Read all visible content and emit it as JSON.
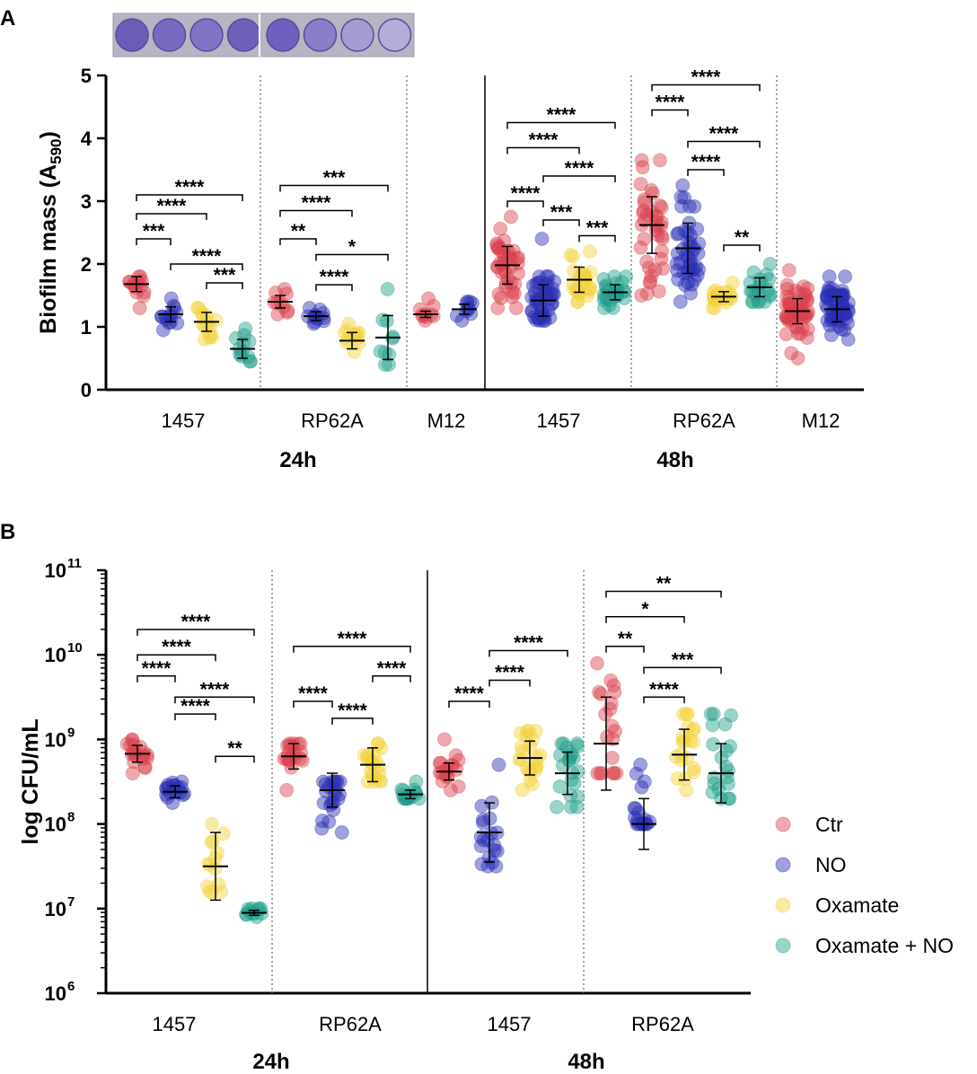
{
  "colors": {
    "Ctr": "#d9414e",
    "NO": "#2a2fb4",
    "Oxamate": "#f2d23a",
    "OxNO": "#1f9e8a",
    "well": "#6f5fbf"
  },
  "panel_a": {
    "letter": "A",
    "wells": 8
  },
  "panel_b": {
    "letter": "B"
  },
  "legend": [
    {
      "key": "Ctr",
      "label": "Ctr"
    },
    {
      "key": "NO",
      "label": "NO"
    },
    {
      "key": "Oxamate",
      "label": "Oxamate"
    },
    {
      "key": "OxNO",
      "label": "Oxamate + NO"
    }
  ],
  "chart_data": [
    {
      "id": "A",
      "type": "scatter",
      "title": "",
      "ylabel": "Biofilm mass (A590)",
      "ylabel_main": "Biofilm mass (A",
      "ylabel_sub": "590",
      "ylabel_end": ")",
      "ylim": [
        0,
        5
      ],
      "yticks": [
        "0",
        "1",
        "2",
        "3",
        "4",
        "5"
      ],
      "time_labels": [
        "24h",
        "48h"
      ],
      "groups": [
        {
          "label": "1457",
          "time": "24h",
          "series": [
            {
              "key": "Ctr",
              "mean": 1.68,
              "sd": 0.12,
              "min": 1.3,
              "max": 1.8,
              "n": 14
            },
            {
              "key": "NO",
              "mean": 1.2,
              "sd": 0.12,
              "min": 0.95,
              "max": 1.45,
              "n": 14
            },
            {
              "key": "Oxamate",
              "mean": 1.08,
              "sd": 0.15,
              "min": 0.8,
              "max": 1.3,
              "n": 14
            },
            {
              "key": "OxNO",
              "mean": 0.65,
              "sd": 0.15,
              "min": 0.45,
              "max": 0.97,
              "n": 12
            }
          ],
          "sig": [
            {
              "a": 0,
              "b": 1,
              "label": "***",
              "y": 2.4
            },
            {
              "a": 0,
              "b": 2,
              "label": "****",
              "y": 2.8
            },
            {
              "a": 0,
              "b": 3,
              "label": "****",
              "y": 3.1
            },
            {
              "a": 1,
              "b": 3,
              "label": "****",
              "y": 2.0
            },
            {
              "a": 2,
              "b": 3,
              "label": "***",
              "y": 1.7
            }
          ]
        },
        {
          "label": "RP62A",
          "time": "24h",
          "series": [
            {
              "key": "Ctr",
              "mean": 1.4,
              "sd": 0.1,
              "min": 1.2,
              "max": 1.6,
              "n": 10
            },
            {
              "key": "NO",
              "mean": 1.17,
              "sd": 0.07,
              "min": 1.05,
              "max": 1.3,
              "n": 12
            },
            {
              "key": "Oxamate",
              "mean": 0.78,
              "sd": 0.13,
              "min": 0.6,
              "max": 1.05,
              "n": 12
            },
            {
              "key": "OxNO",
              "mean": 0.83,
              "sd": 0.35,
              "min": 0.4,
              "max": 1.6,
              "n": 10
            }
          ],
          "sig": [
            {
              "a": 0,
              "b": 1,
              "label": "**",
              "y": 2.4
            },
            {
              "a": 0,
              "b": 2,
              "label": "****",
              "y": 2.85
            },
            {
              "a": 0,
              "b": 3,
              "label": "***",
              "y": 3.25
            },
            {
              "a": 1,
              "b": 3,
              "label": "*",
              "y": 2.15
            },
            {
              "a": 1,
              "b": 2,
              "label": "****",
              "y": 1.67
            }
          ]
        },
        {
          "label": "M12",
          "time": "24h",
          "series": [
            {
              "key": "Ctr",
              "mean": 1.2,
              "sd": 0.05,
              "min": 1.1,
              "max": 1.45,
              "n": 10
            },
            {
              "key": "NO",
              "mean": 1.28,
              "sd": 0.08,
              "min": 1.1,
              "max": 1.4,
              "n": 10
            }
          ],
          "sig": []
        },
        {
          "label": "1457",
          "time": "48h",
          "series": [
            {
              "key": "Ctr",
              "mean": 1.98,
              "sd": 0.3,
              "min": 1.3,
              "max": 2.75,
              "n": 40
            },
            {
              "key": "NO",
              "mean": 1.42,
              "sd": 0.25,
              "min": 1.1,
              "max": 2.4,
              "n": 45
            },
            {
              "key": "Oxamate",
              "mean": 1.75,
              "sd": 0.2,
              "min": 1.4,
              "max": 2.2,
              "n": 25
            },
            {
              "key": "OxNO",
              "mean": 1.55,
              "sd": 0.12,
              "min": 1.3,
              "max": 1.8,
              "n": 25
            }
          ],
          "sig": [
            {
              "a": 0,
              "b": 1,
              "label": "****",
              "y": 3.0
            },
            {
              "a": 0,
              "b": 2,
              "label": "****",
              "y": 3.85
            },
            {
              "a": 0,
              "b": 3,
              "label": "****",
              "y": 4.25
            },
            {
              "a": 1,
              "b": 3,
              "label": "****",
              "y": 3.4
            },
            {
              "a": 1,
              "b": 2,
              "label": "***",
              "y": 2.7
            },
            {
              "a": 2,
              "b": 3,
              "label": "***",
              "y": 2.45
            }
          ]
        },
        {
          "label": "RP62A",
          "time": "48h",
          "series": [
            {
              "key": "Ctr",
              "mean": 2.62,
              "sd": 0.45,
              "min": 1.5,
              "max": 3.65,
              "n": 40
            },
            {
              "key": "NO",
              "mean": 2.25,
              "sd": 0.4,
              "min": 1.4,
              "max": 3.25,
              "n": 45
            },
            {
              "key": "Oxamate",
              "mean": 1.48,
              "sd": 0.08,
              "min": 1.3,
              "max": 1.7,
              "n": 20
            },
            {
              "key": "OxNO",
              "mean": 1.63,
              "sd": 0.15,
              "min": 1.4,
              "max": 2.0,
              "n": 20
            }
          ],
          "sig": [
            {
              "a": 0,
              "b": 1,
              "label": "****",
              "y": 4.45
            },
            {
              "a": 0,
              "b": 3,
              "label": "****",
              "y": 4.85
            },
            {
              "a": 1,
              "b": 3,
              "label": "****",
              "y": 3.95
            },
            {
              "a": 1,
              "b": 2,
              "label": "****",
              "y": 3.5
            },
            {
              "a": 2,
              "b": 3,
              "label": "**",
              "y": 2.3
            }
          ]
        },
        {
          "label": "M12",
          "time": "48h",
          "series": [
            {
              "key": "Ctr",
              "mean": 1.25,
              "sd": 0.2,
              "min": 0.5,
              "max": 1.9,
              "n": 55
            },
            {
              "key": "NO",
              "mean": 1.28,
              "sd": 0.2,
              "min": 0.8,
              "max": 1.8,
              "n": 60
            }
          ],
          "sig": []
        }
      ]
    },
    {
      "id": "B",
      "type": "scatter",
      "title": "",
      "ylabel": "log CFU/mL",
      "yscale": "log",
      "ylim": [
        6,
        11
      ],
      "yticks": [
        {
          "base": "10",
          "exp": "6"
        },
        {
          "base": "10",
          "exp": "7"
        },
        {
          "base": "10",
          "exp": "8"
        },
        {
          "base": "10",
          "exp": "9"
        },
        {
          "base": "10",
          "exp": "10"
        },
        {
          "base": "10",
          "exp": "11"
        }
      ],
      "time_labels": [
        "24h",
        "48h"
      ],
      "groups": [
        {
          "label": "1457",
          "time": "24h",
          "series": [
            {
              "key": "Ctr",
              "mean": 8.83,
              "sd": 0.1,
              "min": 8.6,
              "max": 9.0,
              "n": 20
            },
            {
              "key": "NO",
              "mean": 8.38,
              "sd": 0.07,
              "min": 8.25,
              "max": 8.5,
              "n": 18
            },
            {
              "key": "Oxamate",
              "mean": 7.5,
              "sd": 0.4,
              "min": 7.2,
              "max": 8.0,
              "n": 14
            },
            {
              "key": "OxNO",
              "mean": 6.95,
              "sd": 0.03,
              "min": 6.9,
              "max": 7.0,
              "n": 12
            }
          ],
          "sig": [
            {
              "a": 0,
              "b": 1,
              "label": "****",
              "y": 9.75
            },
            {
              "a": 0,
              "b": 2,
              "label": "****",
              "y": 10.0
            },
            {
              "a": 0,
              "b": 3,
              "label": "****",
              "y": 10.3
            },
            {
              "a": 1,
              "b": 3,
              "label": "****",
              "y": 9.5
            },
            {
              "a": 1,
              "b": 2,
              "label": "****",
              "y": 9.3
            },
            {
              "a": 2,
              "b": 3,
              "label": "**",
              "y": 8.8
            }
          ]
        },
        {
          "label": "RP62A",
          "time": "24h",
          "series": [
            {
              "key": "Ctr",
              "mean": 8.8,
              "sd": 0.15,
              "min": 8.4,
              "max": 8.95,
              "n": 20
            },
            {
              "key": "NO",
              "mean": 8.4,
              "sd": 0.2,
              "min": 7.9,
              "max": 8.5,
              "n": 22
            },
            {
              "key": "Oxamate",
              "mean": 8.7,
              "sd": 0.2,
              "min": 8.5,
              "max": 8.95,
              "n": 20
            },
            {
              "key": "OxNO",
              "mean": 8.35,
              "sd": 0.05,
              "min": 8.3,
              "max": 8.5,
              "n": 16
            }
          ],
          "sig": [
            {
              "a": 0,
              "b": 1,
              "label": "****",
              "y": 9.45
            },
            {
              "a": 0,
              "b": 3,
              "label": "****",
              "y": 10.1
            },
            {
              "a": 1,
              "b": 2,
              "label": "****",
              "y": 9.25
            },
            {
              "a": 2,
              "b": 3,
              "label": "****",
              "y": 9.75
            }
          ]
        },
        {
          "label": "1457",
          "time": "48h",
          "series": [
            {
              "key": "Ctr",
              "mean": 8.62,
              "sd": 0.1,
              "min": 8.4,
              "max": 9.0,
              "n": 18
            },
            {
              "key": "NO",
              "mean": 7.9,
              "sd": 0.35,
              "min": 7.5,
              "max": 8.7,
              "n": 20
            },
            {
              "key": "Oxamate",
              "mean": 8.78,
              "sd": 0.2,
              "min": 8.4,
              "max": 9.1,
              "n": 22
            },
            {
              "key": "OxNO",
              "mean": 8.6,
              "sd": 0.25,
              "min": 8.2,
              "max": 8.95,
              "n": 22
            }
          ],
          "sig": [
            {
              "a": 0,
              "b": 1,
              "label": "****",
              "y": 9.45
            },
            {
              "a": 1,
              "b": 2,
              "label": "****",
              "y": 9.7
            },
            {
              "a": 1,
              "b": 3,
              "label": "****",
              "y": 10.05
            }
          ]
        },
        {
          "label": "RP62A",
          "time": "48h",
          "series": [
            {
              "key": "Ctr",
              "mean": 8.95,
              "sd": 0.55,
              "min": 8.6,
              "max": 9.9,
              "n": 20
            },
            {
              "key": "NO",
              "mean": 8.0,
              "sd": 0.3,
              "min": 8.0,
              "max": 8.7,
              "n": 18
            },
            {
              "key": "Oxamate",
              "mean": 8.82,
              "sd": 0.3,
              "min": 8.4,
              "max": 9.3,
              "n": 20
            },
            {
              "key": "OxNO",
              "mean": 8.6,
              "sd": 0.35,
              "min": 8.3,
              "max": 9.3,
              "n": 20
            }
          ],
          "sig": [
            {
              "a": 0,
              "b": 1,
              "label": "**",
              "y": 10.1
            },
            {
              "a": 0,
              "b": 2,
              "label": "*",
              "y": 10.45
            },
            {
              "a": 0,
              "b": 3,
              "label": "**",
              "y": 10.75
            },
            {
              "a": 1,
              "b": 3,
              "label": "***",
              "y": 9.85
            },
            {
              "a": 1,
              "b": 2,
              "label": "****",
              "y": 9.5
            }
          ]
        }
      ]
    }
  ]
}
